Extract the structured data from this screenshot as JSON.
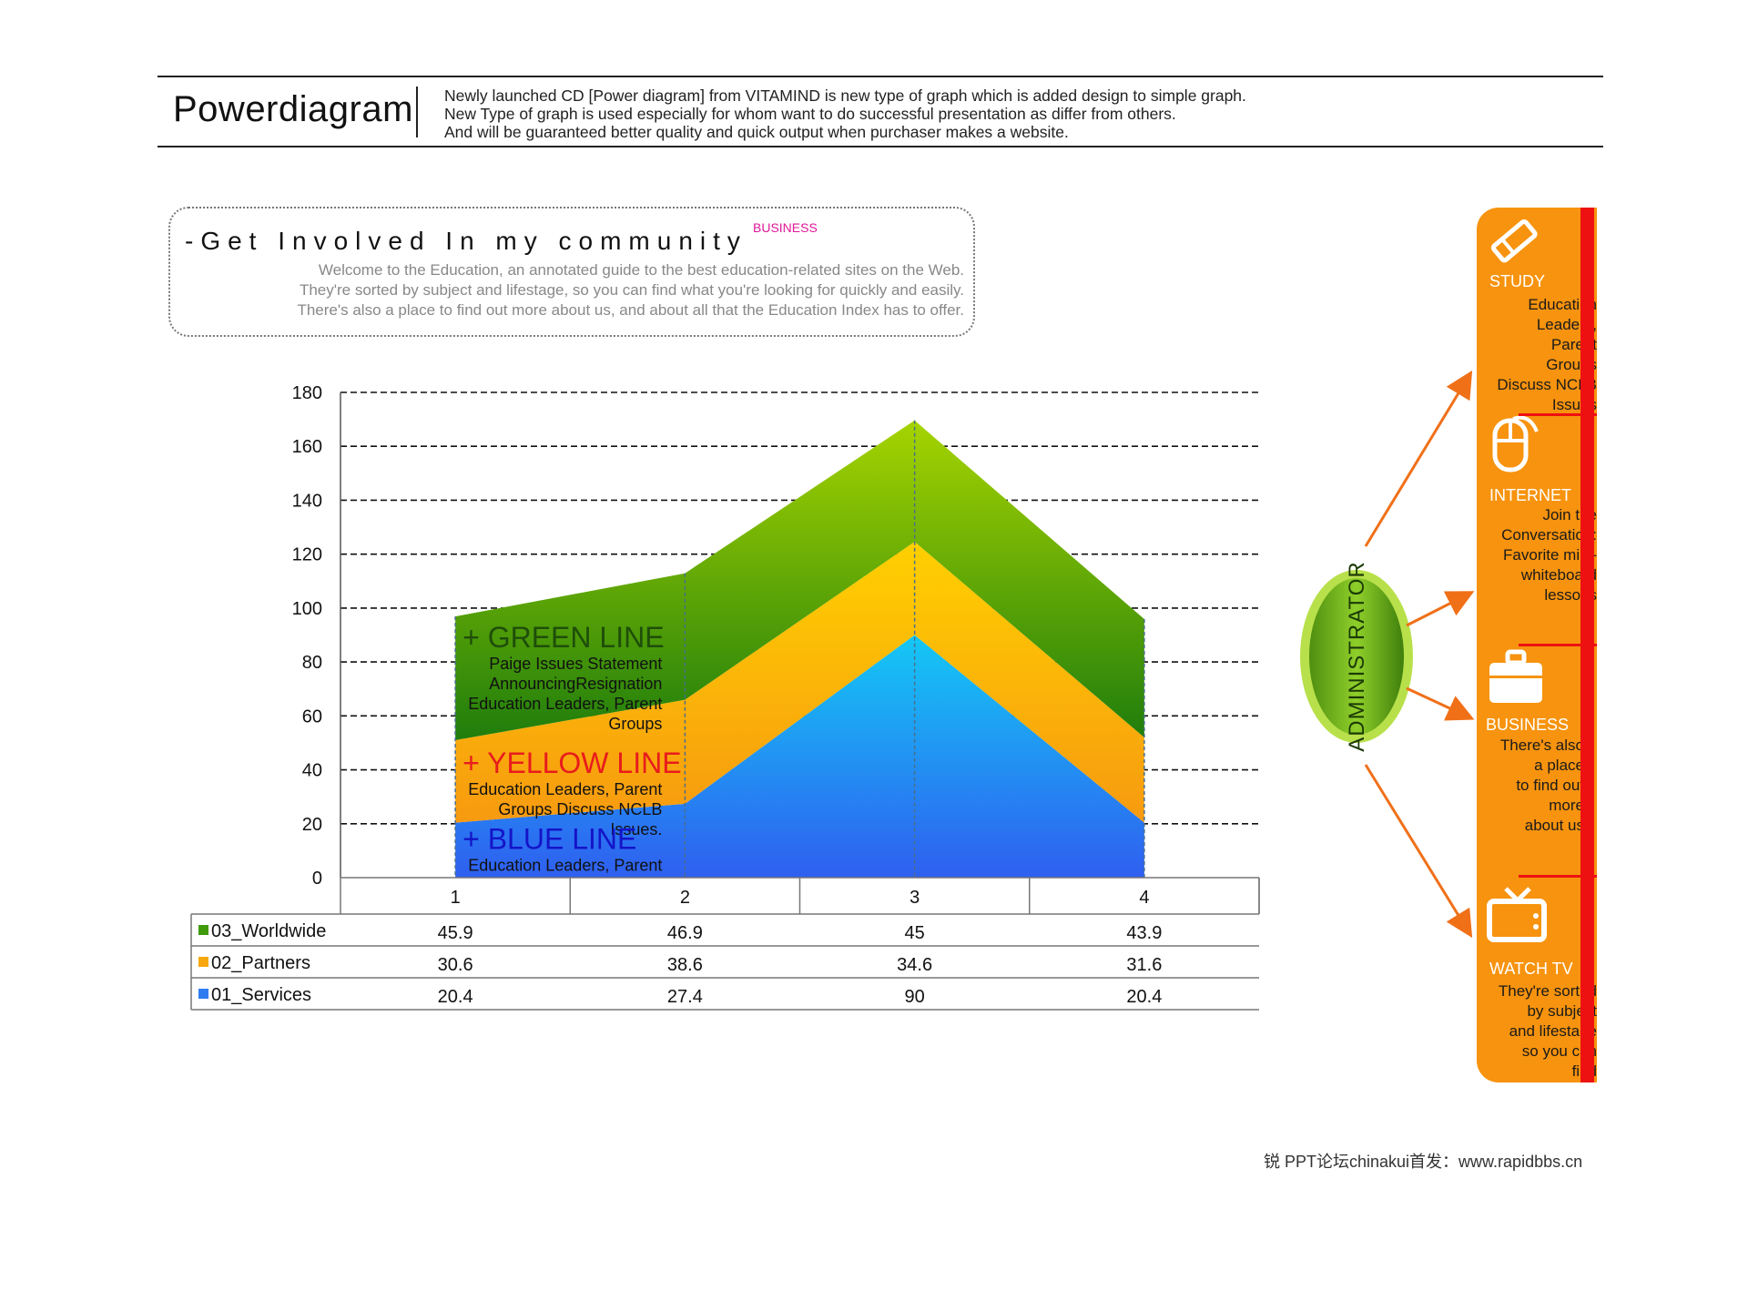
{
  "header": {
    "title": "Powerdiagram",
    "description": [
      "Newly launched CD [Power diagram] from VITAMIND is new type of graph which is added design to simple graph.",
      "New Type of graph is used especially for whom want to do successful presentation as differ from others.",
      "And will be guaranteed better quality and quick output when purchaser makes a website."
    ]
  },
  "community": {
    "title": "-Get Involved In my community",
    "tag": "BUSINESS",
    "body": [
      "Welcome to the Education, an annotated guide to the best education-related sites on the Web.",
      "They're sorted by subject and lifestage, so you can find what you're looking for quickly and easily.",
      "There's also a place to find out more about us, and about all that the Education Index has to offer."
    ]
  },
  "chart_data": {
    "type": "area",
    "stacked": true,
    "categories": [
      "1",
      "2",
      "3",
      "4"
    ],
    "y_ticks": [
      "0",
      "20",
      "40",
      "60",
      "80",
      "100",
      "120",
      "140",
      "160",
      "180"
    ],
    "ylim": [
      0,
      180
    ],
    "grid": true,
    "series": [
      {
        "name": "01_Services",
        "values": [
          20.4,
          27.4,
          90,
          20.4
        ],
        "values_text": [
          "20.4",
          "27.4",
          "90",
          "20.4"
        ],
        "color": "#2f7cf0"
      },
      {
        "name": "02_Partners",
        "values": [
          30.6,
          38.6,
          34.6,
          31.6
        ],
        "values_text": [
          "30.6",
          "38.6",
          "34.6",
          "31.6"
        ],
        "color": "#f7a80f"
      },
      {
        "name": "03_Worldwide",
        "values": [
          45.9,
          46.9,
          45,
          43.9
        ],
        "values_text": [
          "45.9",
          "46.9",
          "45",
          "43.9"
        ],
        "color": "#3f9a0c"
      }
    ],
    "annotations": [
      {
        "label": "+ GREEN LINE",
        "color": "#1f4e0a",
        "desc": [
          "Paige Issues Statement",
          "AnnouncingResignation",
          "Education Leaders, Parent",
          "Groups"
        ]
      },
      {
        "label": "+ YELLOW LINE",
        "color": "#e81c1c",
        "desc": [
          "Education Leaders, Parent",
          "Groups Discuss NCLB",
          "Issues."
        ]
      },
      {
        "label": "+ BLUE LINE",
        "color": "#1414c8",
        "desc": [
          "Education Leaders, Parent"
        ]
      }
    ]
  },
  "administrator": {
    "label": "ADMINISTRATOR"
  },
  "sidebar": {
    "items": [
      {
        "icon": "pencil-icon",
        "title": "STUDY",
        "body": [
          "Education",
          "Leaders,",
          "Parent",
          "Groups",
          "Discuss NCLB",
          "Issues"
        ]
      },
      {
        "icon": "mouse-icon",
        "title": "INTERNET",
        "body": [
          "Join the",
          "Conversation:",
          "Favorite mini-",
          "whiteboard",
          "lessons"
        ]
      },
      {
        "icon": "briefcase-icon",
        "title": "BUSINESS",
        "body": [
          "There's also",
          "a place",
          "to find out",
          "more",
          "about us"
        ]
      },
      {
        "icon": "tv-icon",
        "title": "WATCH TV",
        "body": [
          "They're sorted",
          "by subject",
          "and lifestage",
          "so you can",
          "find"
        ]
      }
    ]
  },
  "footer": {
    "text": "锐    PPT论坛chinakui首发：www.rapidbbs.cn"
  },
  "colors": {
    "accent_orange": "#f7930e",
    "accent_red": "#ee1111",
    "admin_green": "#6cb21e"
  }
}
